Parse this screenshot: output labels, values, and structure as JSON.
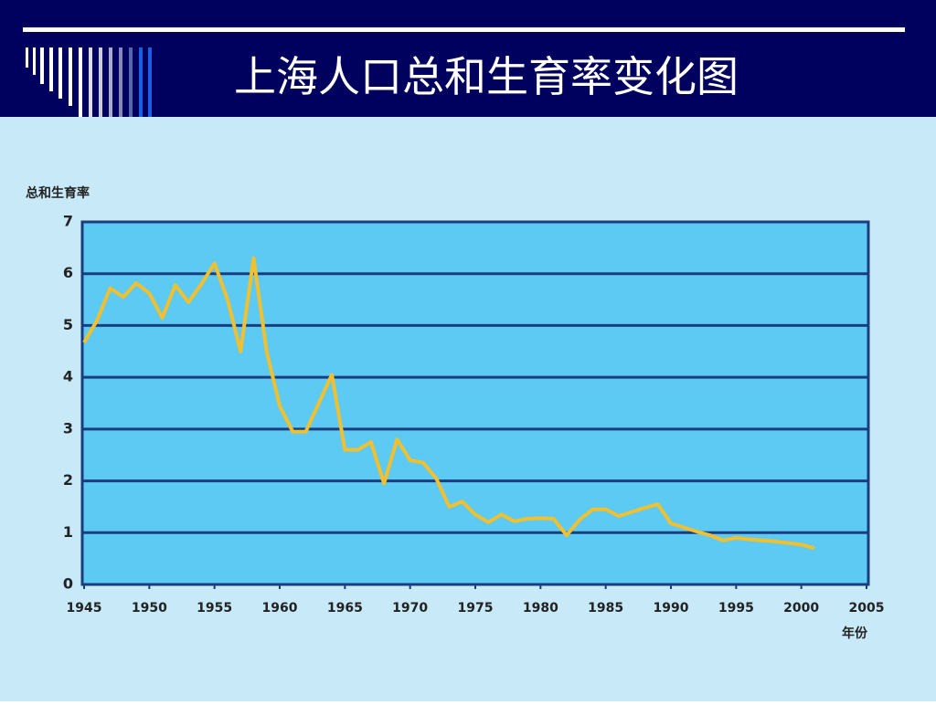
{
  "chart_data": {
    "type": "line",
    "title": "上海人口总和生育率变化图",
    "y_label": "总和生育率",
    "x_label": "年份",
    "x": [
      1945,
      1946,
      1947,
      1948,
      1949,
      1950,
      1951,
      1952,
      1953,
      1954,
      1955,
      1956,
      1957,
      1958,
      1959,
      1960,
      1961,
      1962,
      1963,
      1964,
      1965,
      1966,
      1967,
      1968,
      1969,
      1970,
      1971,
      1972,
      1973,
      1974,
      1975,
      1976,
      1977,
      1978,
      1979,
      1980,
      1981,
      1982,
      1983,
      1984,
      1985,
      1986,
      1987,
      1988,
      1989,
      1990,
      1991,
      1992,
      1993,
      1994,
      1995,
      1996,
      1997,
      1998,
      1999,
      2000,
      2001
    ],
    "values": [
      4.67,
      5.1,
      5.72,
      5.55,
      5.82,
      5.62,
      5.15,
      5.78,
      5.45,
      5.8,
      6.2,
      5.5,
      4.5,
      6.3,
      4.5,
      3.45,
      2.95,
      2.95,
      3.5,
      4.05,
      2.6,
      2.6,
      2.75,
      1.95,
      2.8,
      2.4,
      2.35,
      2.05,
      1.5,
      1.6,
      1.35,
      1.2,
      1.35,
      1.22,
      1.27,
      1.28,
      1.27,
      0.95,
      1.25,
      1.45,
      1.45,
      1.32,
      1.4,
      1.48,
      1.55,
      1.18,
      1.1,
      1.02,
      0.95,
      0.85,
      0.9,
      0.87,
      0.85,
      0.83,
      0.8,
      0.77,
      0.7
    ],
    "color": "#f0c030",
    "xlim": [
      1945,
      2005
    ],
    "xticks": [
      1945,
      1950,
      1955,
      1960,
      1965,
      1970,
      1975,
      1980,
      1985,
      1990,
      1995,
      2000,
      2005
    ],
    "ylim": [
      0,
      7
    ],
    "yticks": [
      0,
      1,
      2,
      3,
      4,
      5,
      6,
      7
    ],
    "grid": true
  }
}
